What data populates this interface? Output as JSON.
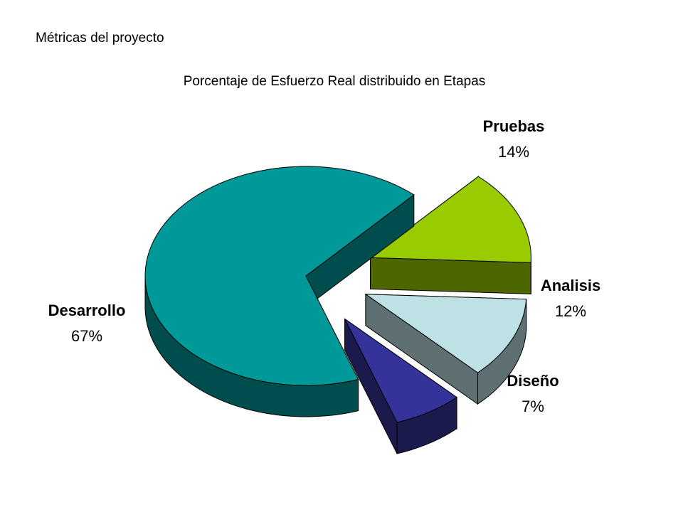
{
  "header": {
    "title": "Métricas del proyecto"
  },
  "chart_data": {
    "type": "pie",
    "title": "Porcentaje de Esfuerzo Real distribuido en Etapas",
    "slices": [
      {
        "label": "Desarrollo",
        "value": 67,
        "value_label": "67%",
        "color": "#009999",
        "side_color": "#004d4d"
      },
      {
        "label": "Pruebas",
        "value": 14,
        "value_label": "14%",
        "color": "#99cc00",
        "side_color": "#4d6600"
      },
      {
        "label": "Analisis",
        "value": 12,
        "value_label": "12%",
        "color": "#bde1e4",
        "side_color": "#5f7072"
      },
      {
        "label": "Diseño",
        "value": 7,
        "value_label": "7%",
        "color": "#333399",
        "side_color": "#1a1a4d"
      }
    ],
    "style": "3d-exploded"
  }
}
